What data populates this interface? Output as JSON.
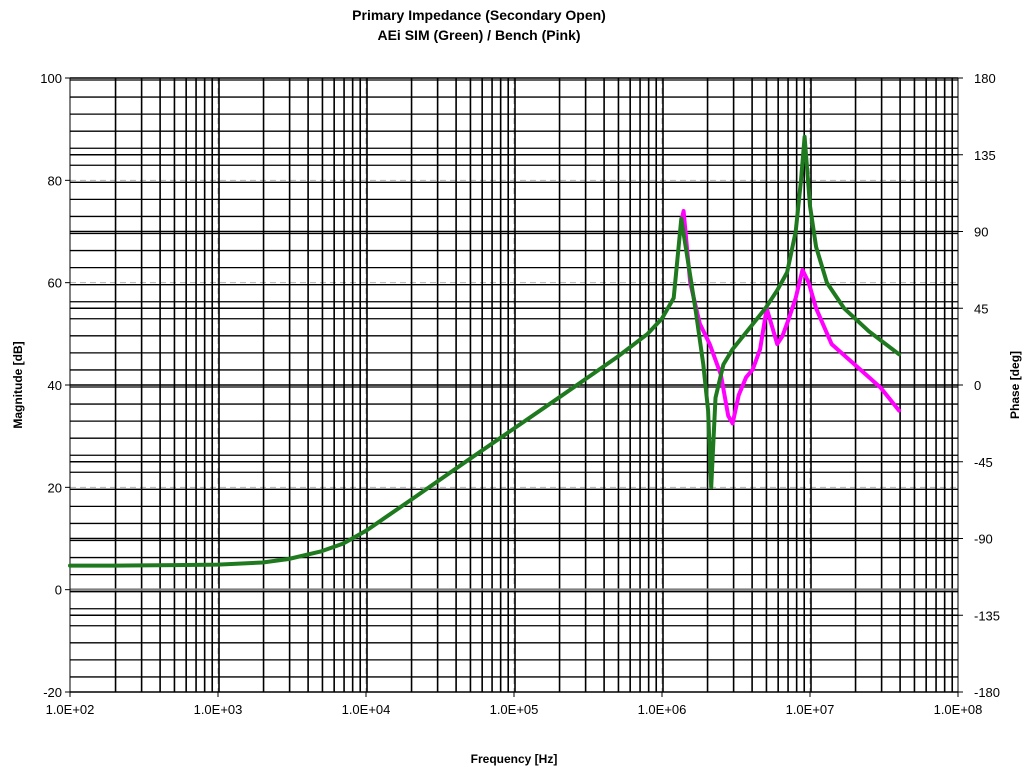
{
  "chart_data": {
    "type": "line",
    "title": "Primary Impedance (Secondary Open)",
    "subtitle": "AEi SIM (Green) / Bench (Pink)",
    "xlabel": "Frequency [Hz]",
    "ylabel": "Magnitude [dB]",
    "y2label": "Phase [deg]",
    "x_scale": "log",
    "xlim": [
      100,
      100000000
    ],
    "ylim": [
      -20,
      100
    ],
    "y2lim": [
      -180,
      180
    ],
    "x_ticks": [
      100,
      1000,
      10000,
      100000,
      1000000,
      10000000,
      100000000
    ],
    "x_tick_labels": [
      "1.0E+02",
      "1.0E+03",
      "1.0E+04",
      "1.0E+05",
      "1.0E+06",
      "1.0E+07",
      "1.0E+08"
    ],
    "y_ticks": [
      -20,
      0,
      20,
      40,
      60,
      80,
      100
    ],
    "y_tick_labels": [
      "-20",
      "0",
      "20",
      "40",
      "60",
      "80",
      "100"
    ],
    "y2_ticks": [
      -180,
      -135,
      -90,
      -45,
      0,
      45,
      90,
      135,
      180
    ],
    "y2_tick_labels": [
      "-180",
      "-135",
      "-90",
      "-45",
      "0",
      "45",
      "90",
      "135",
      "180"
    ],
    "grid": true,
    "colors": {
      "sim": "#1f7a1f",
      "bench": "#ff00ff",
      "grid_major": "#000000",
      "grid_dash": "#b0b0b0"
    },
    "series": [
      {
        "key": "sim",
        "color": "#1f7a1f",
        "x": [
          100,
          200,
          500,
          1000,
          2000,
          3000,
          5000,
          7000,
          10000,
          20000,
          50000,
          100000,
          200000,
          500000,
          800000,
          1000000,
          1200000,
          1350000,
          1500000,
          1700000,
          1900000,
          2050000,
          2150000,
          2300000,
          2600000,
          3000000,
          4000000,
          5000000,
          6000000,
          7000000,
          8000000,
          8700000,
          9200000,
          10000000,
          11000000,
          13000000,
          17000000,
          25000000,
          40000000
        ],
        "values": [
          4.7,
          4.7,
          4.8,
          4.9,
          5.3,
          6.0,
          7.5,
          9.0,
          11.5,
          17.5,
          25.5,
          31.5,
          37.5,
          45.5,
          50.0,
          53.0,
          57.0,
          72.5,
          64.0,
          54.0,
          44.0,
          35.0,
          20.0,
          37.5,
          44.0,
          47.0,
          51.5,
          55.0,
          58.5,
          62.0,
          70.0,
          80.0,
          88.5,
          75.0,
          67.0,
          60.0,
          55.0,
          50.5,
          46.0
        ]
      },
      {
        "key": "bench",
        "color": "#ff00ff",
        "x": [
          1350000,
          1400000,
          1550000,
          1800000,
          2100000,
          2500000,
          2800000,
          3000000,
          3300000,
          3700000,
          4100000,
          4600000,
          5100000,
          5600000,
          6000000,
          6500000,
          7200000,
          8000000,
          8900000,
          9800000,
          11000000,
          14000000,
          20000000,
          30000000,
          40000000
        ],
        "values": [
          72.0,
          74.0,
          60.0,
          52.0,
          48.0,
          42.0,
          34.0,
          32.5,
          38.0,
          41.5,
          43.0,
          47.0,
          55.0,
          51.0,
          48.0,
          49.5,
          53.0,
          57.0,
          62.5,
          60.0,
          55.0,
          48.0,
          44.0,
          39.5,
          35.0
        ]
      }
    ]
  }
}
